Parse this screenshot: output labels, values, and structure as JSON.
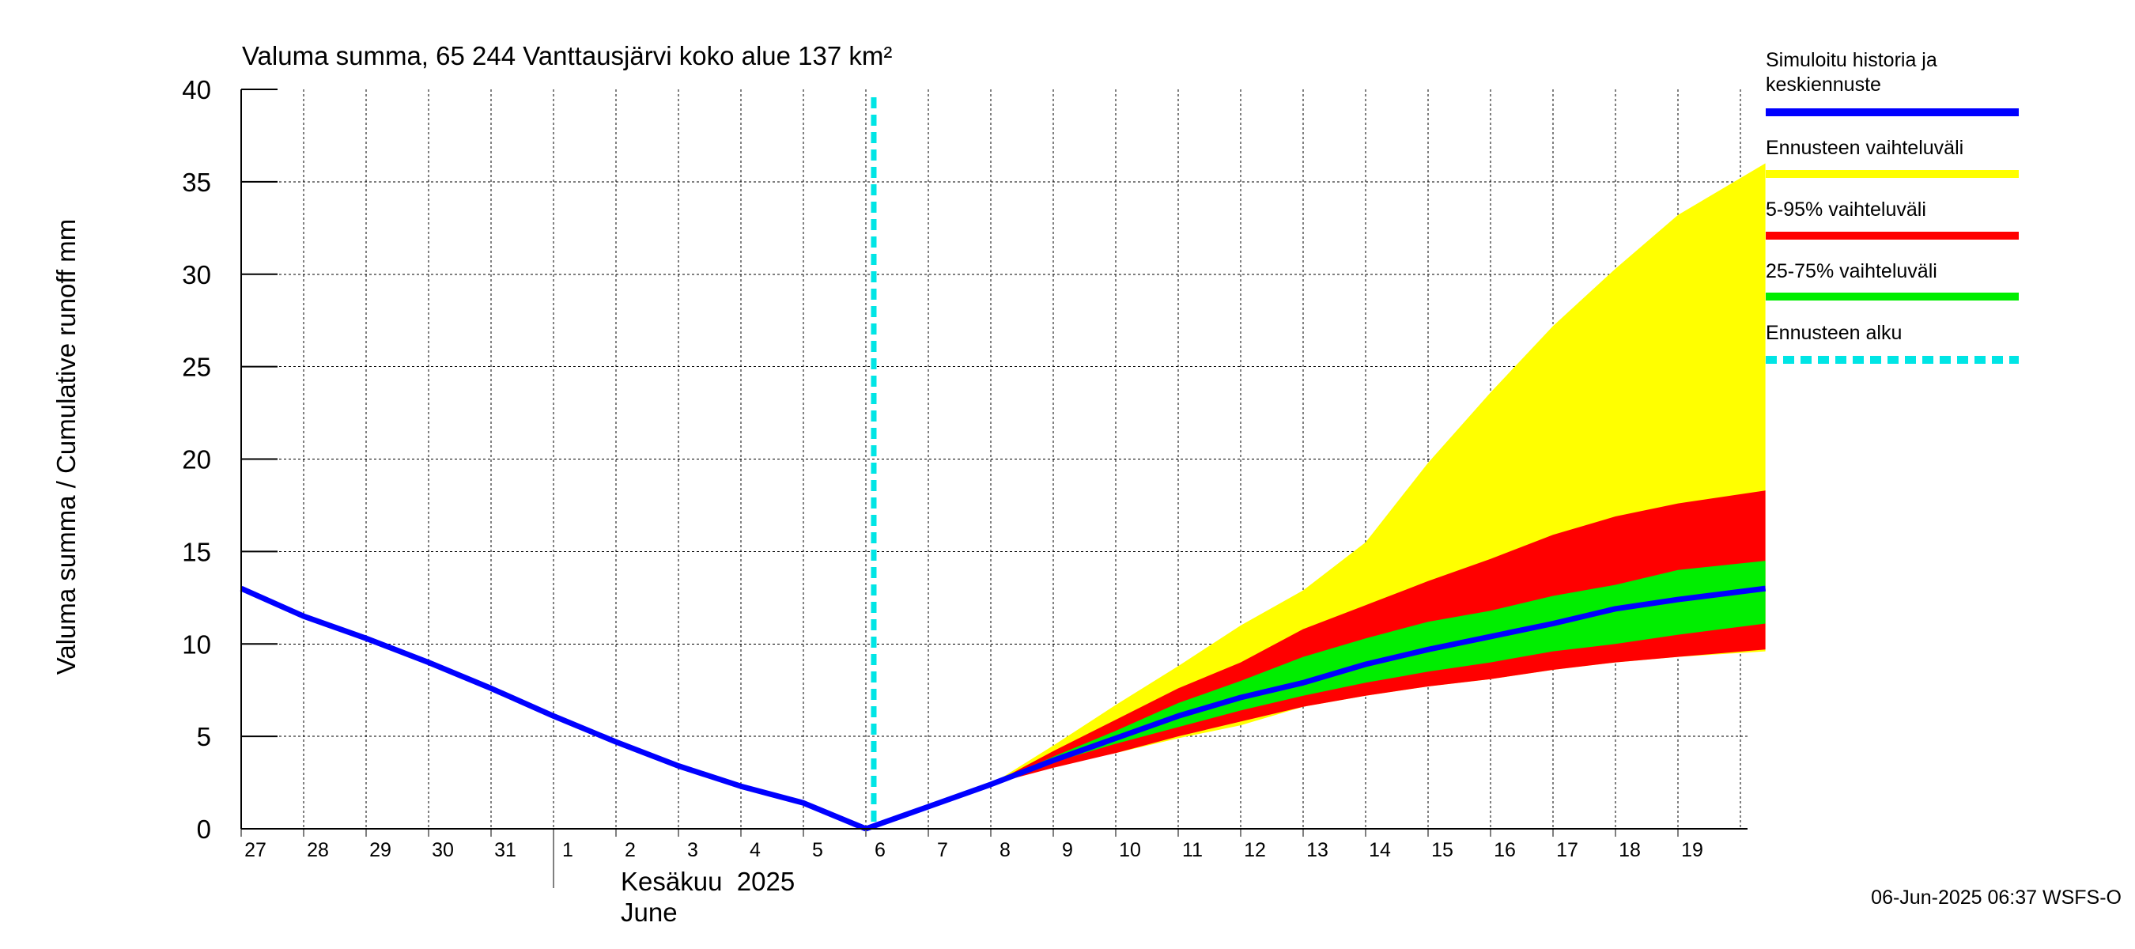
{
  "chart_data": {
    "type": "area",
    "title": "Valuma summa, 65 244 Vanttausjärvi koko alue 137 km²",
    "ylabel": "Valuma summa / Cumulative runoff    mm",
    "ylim": [
      0,
      40
    ],
    "yticks": [
      0,
      5,
      10,
      15,
      20,
      25,
      30,
      35,
      40
    ],
    "xlim": [
      0,
      24.4
    ],
    "x_tick_labels": [
      "27",
      "28",
      "29",
      "30",
      "31",
      "1",
      "2",
      "3",
      "4",
      "5",
      "6",
      "7",
      "8",
      "9",
      "10",
      "11",
      "12",
      "13",
      "14",
      "15",
      "16",
      "17",
      "18",
      "19"
    ],
    "month_labels": [
      "Kesäkuu  2025",
      "June"
    ],
    "grid": true,
    "forecast_start_x": 10,
    "history": {
      "name": "Simuloitu historia ja keskiennuste",
      "x": [
        0,
        1,
        2,
        3,
        4,
        5,
        6,
        7,
        8,
        9,
        10
      ],
      "y": [
        13.0,
        11.5,
        10.3,
        9.0,
        7.6,
        6.1,
        4.7,
        3.4,
        2.3,
        1.4,
        0.0
      ]
    },
    "forecast_x": [
      10,
      11,
      12,
      13,
      14,
      15,
      16,
      17,
      18,
      19,
      20,
      21,
      22,
      23,
      24.4
    ],
    "series": [
      {
        "name": "Ennusteen vaihteluväli",
        "color": "#ffff00",
        "type": "band",
        "lower": [
          0.0,
          1.2,
          2.4,
          3.4,
          4.1,
          4.9,
          5.6,
          6.6,
          7.2,
          7.7,
          8.1,
          8.6,
          9.0,
          9.3,
          9.6
        ],
        "upper": [
          0.0,
          1.2,
          2.4,
          4.5,
          6.7,
          8.8,
          11.0,
          12.9,
          15.5,
          19.8,
          23.6,
          27.2,
          30.3,
          33.2,
          36.0
        ]
      },
      {
        "name": "5-95% vaihteluväli",
        "color": "#ff0000",
        "type": "band",
        "lower": [
          0.0,
          1.2,
          2.4,
          3.3,
          4.1,
          5.0,
          5.8,
          6.6,
          7.2,
          7.7,
          8.1,
          8.6,
          9.0,
          9.3,
          9.7
        ],
        "upper": [
          0.0,
          1.2,
          2.4,
          4.2,
          5.9,
          7.6,
          9.0,
          10.8,
          12.1,
          13.4,
          14.6,
          15.9,
          16.9,
          17.6,
          18.3
        ]
      },
      {
        "name": "25-75% vaihteluväli",
        "color": "#00ee00",
        "type": "band",
        "lower": [
          0.0,
          1.2,
          2.4,
          3.6,
          4.6,
          5.5,
          6.4,
          7.2,
          7.9,
          8.5,
          9.0,
          9.6,
          10.0,
          10.5,
          11.1
        ],
        "upper": [
          0.0,
          1.2,
          2.4,
          3.9,
          5.3,
          6.8,
          8.0,
          9.3,
          10.3,
          11.2,
          11.8,
          12.6,
          13.2,
          14.0,
          14.5
        ]
      },
      {
        "name": "Simuloitu historia ja keskiennuste",
        "color": "#0000ff",
        "type": "line",
        "values": [
          0.0,
          1.2,
          2.4,
          3.7,
          4.9,
          6.1,
          7.1,
          7.9,
          8.9,
          9.7,
          10.4,
          11.1,
          11.9,
          12.4,
          13.0
        ]
      }
    ],
    "legend": {
      "placement": "right",
      "items": [
        {
          "label": "Simuloitu historia ja keskiennuste",
          "color": "#0000ff",
          "style": "solid"
        },
        {
          "label": "Ennusteen vaihteluväli",
          "color": "#ffff00",
          "style": "solid"
        },
        {
          "label": "5-95% vaihteluväli",
          "color": "#ff0000",
          "style": "solid"
        },
        {
          "label": "25-75% vaihteluväli",
          "color": "#00ee00",
          "style": "solid"
        },
        {
          "label": "Ennusteen alku",
          "color": "#00e5e5",
          "style": "dashed"
        }
      ]
    },
    "footer": "06-Jun-2025 06:37 WSFS-O"
  }
}
